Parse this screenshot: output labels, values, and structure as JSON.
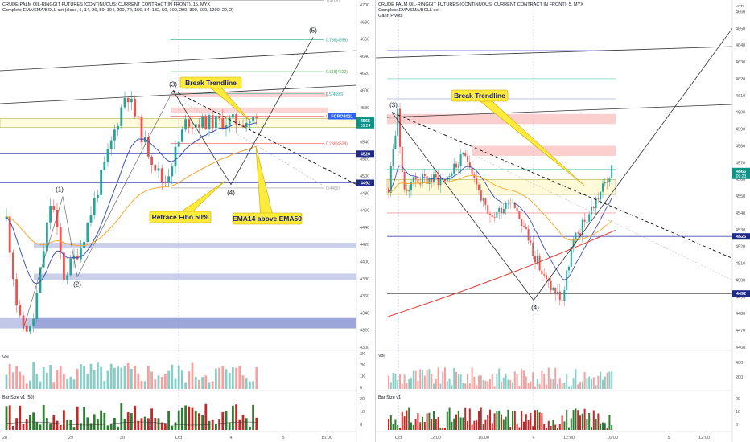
{
  "colors": {
    "up": "#26a69a",
    "down": "#ef5350",
    "blue": "#3f51b5",
    "orange": "#f6a728",
    "red": "#e53935",
    "annot_bg": "#ffeb3b",
    "annot_border": "#c9a400",
    "price_badge": "#2962ff",
    "level_badge": "#1e2a8a"
  },
  "left_chart": {
    "title": "CRUDE PALM OIL-RINGGIT FUTURES (CONTINUOUS: CURRENT CONTRACT IN FRONT), 15, MYX",
    "indicator": "Complete EMA/SMA/BOLL set (close, 6, 14, 26, 50, 104, 200, 72, 156, 84, 182, 50, 100, 200, 300, 600, 1200, 20, 2)",
    "price_ticks": [
      "4700",
      "4680",
      "4660",
      "4640",
      "4620",
      "4600",
      "4580",
      "4560",
      "4540",
      "4520",
      "4500",
      "4480",
      "4460",
      "4440",
      "4420",
      "4400",
      "4380",
      "4360",
      "4340",
      "4320",
      "4300"
    ],
    "time_ticks": [
      "28",
      "29",
      "30",
      "Oct",
      "4",
      "5",
      "15:00"
    ],
    "wave_labels": [
      "(1)",
      "(2)",
      "(3)",
      "(4)",
      "(5)"
    ],
    "fib_labels": [
      "1(4705)",
      "0.786(4659)",
      "0.618(4622)",
      "0.5(4596)",
      "0.382(4570)",
      "0.236(4538)",
      "0(4486)"
    ],
    "annotations": [
      "Break Trendline",
      "Retrace Fibo 50%",
      "EMA14 above EMA50"
    ],
    "badges": {
      "symbol": "FCPO2021",
      "price": "4565",
      "time": "09:24",
      "level1": "4526",
      "level2": "4492"
    },
    "vol_label": "Vol",
    "vol_ticks": [
      "3K",
      "2K",
      "1K",
      "0"
    ],
    "bar_label": "Bar Size v1 (50)",
    "bar_ticks": [
      "20",
      "10",
      "0"
    ]
  },
  "right_chart": {
    "title": "CRUDE PALM OIL-RINGGIT FUTURES (CONTINUOUS: CURRENT CONTRACT IN FRONT), 5, MYX",
    "indicator": "Complete EMA/SMA/BOLL set",
    "indicator2": "Gann Pivots",
    "price_ticks": [
      "4660",
      "4650",
      "4640",
      "4630",
      "4620",
      "4610",
      "4600",
      "4590",
      "4580",
      "4570",
      "4560",
      "4550",
      "4540",
      "4530",
      "4520",
      "4510",
      "4500",
      "4490",
      "4480",
      "4470",
      "4460"
    ],
    "currency": "MYR",
    "time_ticks": [
      "Oct",
      "12:00",
      "16:00",
      "4",
      "12:00",
      "16:00",
      "5",
      "12:00"
    ],
    "wave_labels": [
      "(3)",
      "(4)"
    ],
    "annotations": [
      "Break Trendline"
    ],
    "badges": {
      "price": "4565",
      "time": "09:23",
      "level1": "4526",
      "level2": "4492"
    },
    "vol_label": "Vol",
    "vol_ticks": [
      "400",
      "200"
    ],
    "bar_label": "Bar Size v1",
    "bar_ticks": [
      "20",
      "10",
      "0"
    ]
  },
  "chart_data": [
    {
      "type": "candlestick",
      "title": "CRUDE PALM OIL-RINGGIT FUTURES (CONTINUOUS: CURRENT CONTRACT IN FRONT), 15, MYX",
      "timeframe": "15",
      "ylim": [
        4300,
        4700
      ],
      "x_ticks": [
        "28",
        "29",
        "30",
        "Oct",
        "4",
        "5",
        "15:00"
      ],
      "waves": [
        {
          "label": "(1)",
          "price": 4476
        },
        {
          "label": "(2)",
          "price": 4382
        },
        {
          "label": "(3)",
          "price": 4600
        },
        {
          "label": "(4)",
          "price": 4490
        },
        {
          "label": "(5)",
          "price": 4662
        }
      ],
      "wave_lows": {
        "start": 4318
      },
      "fib_levels": [
        {
          "ratio": 1,
          "price": 4705
        },
        {
          "ratio": 0.786,
          "price": 4659
        },
        {
          "ratio": 0.618,
          "price": 4622
        },
        {
          "ratio": 0.5,
          "price": 4596
        },
        {
          "ratio": 0.382,
          "price": 4570
        },
        {
          "ratio": 0.236,
          "price": 4538
        },
        {
          "ratio": 0,
          "price": 4486
        }
      ],
      "levels": [
        4526,
        4492
      ],
      "last_price": 4565,
      "support_zones": [
        [
          4416,
          4422
        ],
        [
          4378,
          4386
        ],
        [
          4322,
          4334
        ]
      ],
      "resistance_zones": [
        [
          4592,
          4598
        ],
        [
          4574,
          4580
        ]
      ],
      "yellow_zone": [
        4557,
        4567
      ],
      "grid": false
    },
    {
      "type": "candlestick",
      "title": "CRUDE PALM OIL-RINGGIT FUTURES (CONTINUOUS: CURRENT CONTRACT IN FRONT), 5, MYX",
      "timeframe": "5",
      "ylim": [
        4460,
        4665
      ],
      "x_ticks": [
        "Oct",
        "12:00",
        "16:00",
        "4",
        "12:00",
        "16:00",
        "5",
        "12:00"
      ],
      "waves": [
        {
          "label": "(3)",
          "price": 4600
        },
        {
          "label": "(4)",
          "price": 4490
        }
      ],
      "levels": [
        4526,
        4492
      ],
      "last_price": 4565,
      "resistance_zones": [
        [
          4593,
          4599
        ],
        [
          4574,
          4580
        ]
      ],
      "yellow_zone": [
        4551,
        4560
      ],
      "grid": false
    }
  ]
}
